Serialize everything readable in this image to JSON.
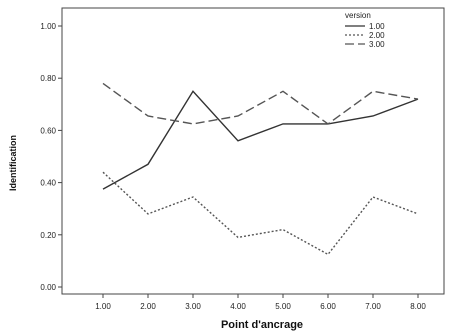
{
  "chart_data": {
    "type": "line",
    "title": "",
    "xlabel": "Point d'ancrage",
    "ylabel": "Identification",
    "categories": [
      "1.00",
      "2.00",
      "3.00",
      "4.00",
      "5.00",
      "6.00",
      "7.00",
      "8.00"
    ],
    "ylim": [
      0,
      1
    ],
    "yticks": [
      "0.00",
      "0.20",
      "0.40",
      "0.60",
      "0.80",
      "1.00"
    ],
    "grid": false,
    "legend": {
      "title": "version",
      "placement": "top-right"
    },
    "series": [
      {
        "name": "1.00",
        "style": "solid",
        "color": "#333333",
        "values": [
          0.375,
          0.47,
          0.75,
          0.56,
          0.625,
          0.625,
          0.655,
          0.72
        ]
      },
      {
        "name": "2.00",
        "style": "dotted",
        "color": "#555555",
        "values": [
          0.44,
          0.28,
          0.345,
          0.19,
          0.22,
          0.125,
          0.345,
          0.28
        ]
      },
      {
        "name": "3.00",
        "style": "dashed",
        "color": "#555555",
        "values": [
          0.78,
          0.655,
          0.625,
          0.655,
          0.75,
          0.625,
          0.75,
          0.72
        ]
      }
    ]
  }
}
